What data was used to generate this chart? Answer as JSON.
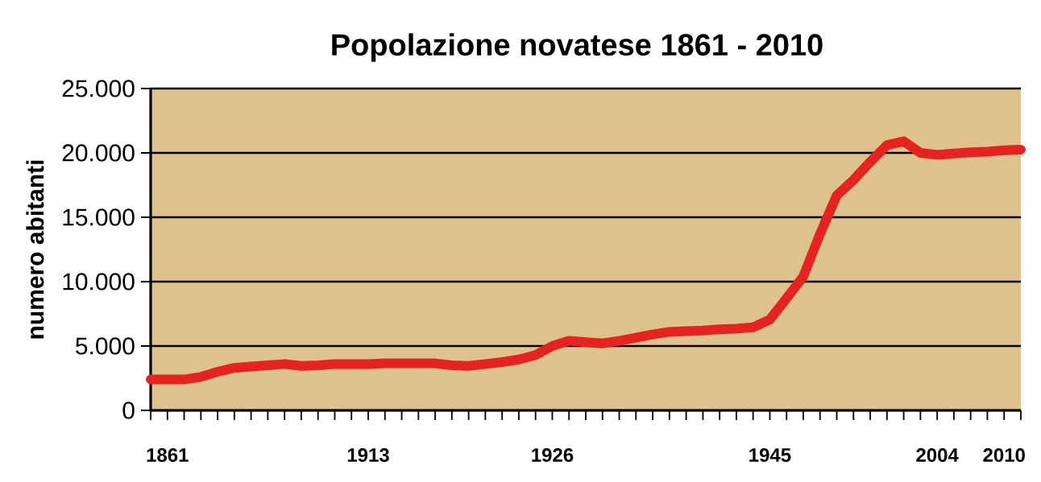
{
  "chart_data": {
    "type": "line",
    "title": "Popolazione novatese 1861 - 2010",
    "ylabel": "numero abitanti",
    "categories": [
      null,
      "1861",
      null,
      null,
      null,
      null,
      null,
      null,
      null,
      null,
      null,
      null,
      null,
      "1913",
      null,
      null,
      null,
      null,
      null,
      null,
      null,
      null,
      null,
      null,
      "1926",
      null,
      null,
      null,
      null,
      null,
      null,
      null,
      null,
      null,
      null,
      null,
      null,
      "1945",
      null,
      null,
      null,
      null,
      null,
      null,
      null,
      null,
      null,
      "2004",
      null,
      null,
      null,
      "2010",
      null
    ],
    "series": [
      {
        "color": "#e52320",
        "values": [
          2400,
          2400,
          2400,
          2600,
          3000,
          3300,
          3400,
          3500,
          3600,
          3450,
          3500,
          3600,
          3600,
          3600,
          3650,
          3650,
          3650,
          3650,
          3500,
          3450,
          3600,
          3750,
          3950,
          4300,
          5000,
          5400,
          5300,
          5200,
          5400,
          5650,
          5900,
          6100,
          6150,
          6200,
          6300,
          6350,
          6450,
          7050,
          8700,
          10400,
          13700,
          16700,
          17900,
          19300,
          20600,
          20900,
          20000,
          19850,
          19950,
          20050,
          20100,
          20200,
          20250
        ]
      }
    ],
    "ylim": [
      0,
      25000
    ],
    "yticks": [
      0,
      {
        "value": 5000,
        "label": "5.000"
      },
      {
        "value": 10000,
        "label": "10.000"
      },
      {
        "value": 15000,
        "label": "15.000"
      },
      {
        "value": 20000,
        "label": "20.000"
      },
      {
        "value": 25000,
        "label": "25.000"
      }
    ],
    "grid": "y",
    "line_style": "solid"
  }
}
